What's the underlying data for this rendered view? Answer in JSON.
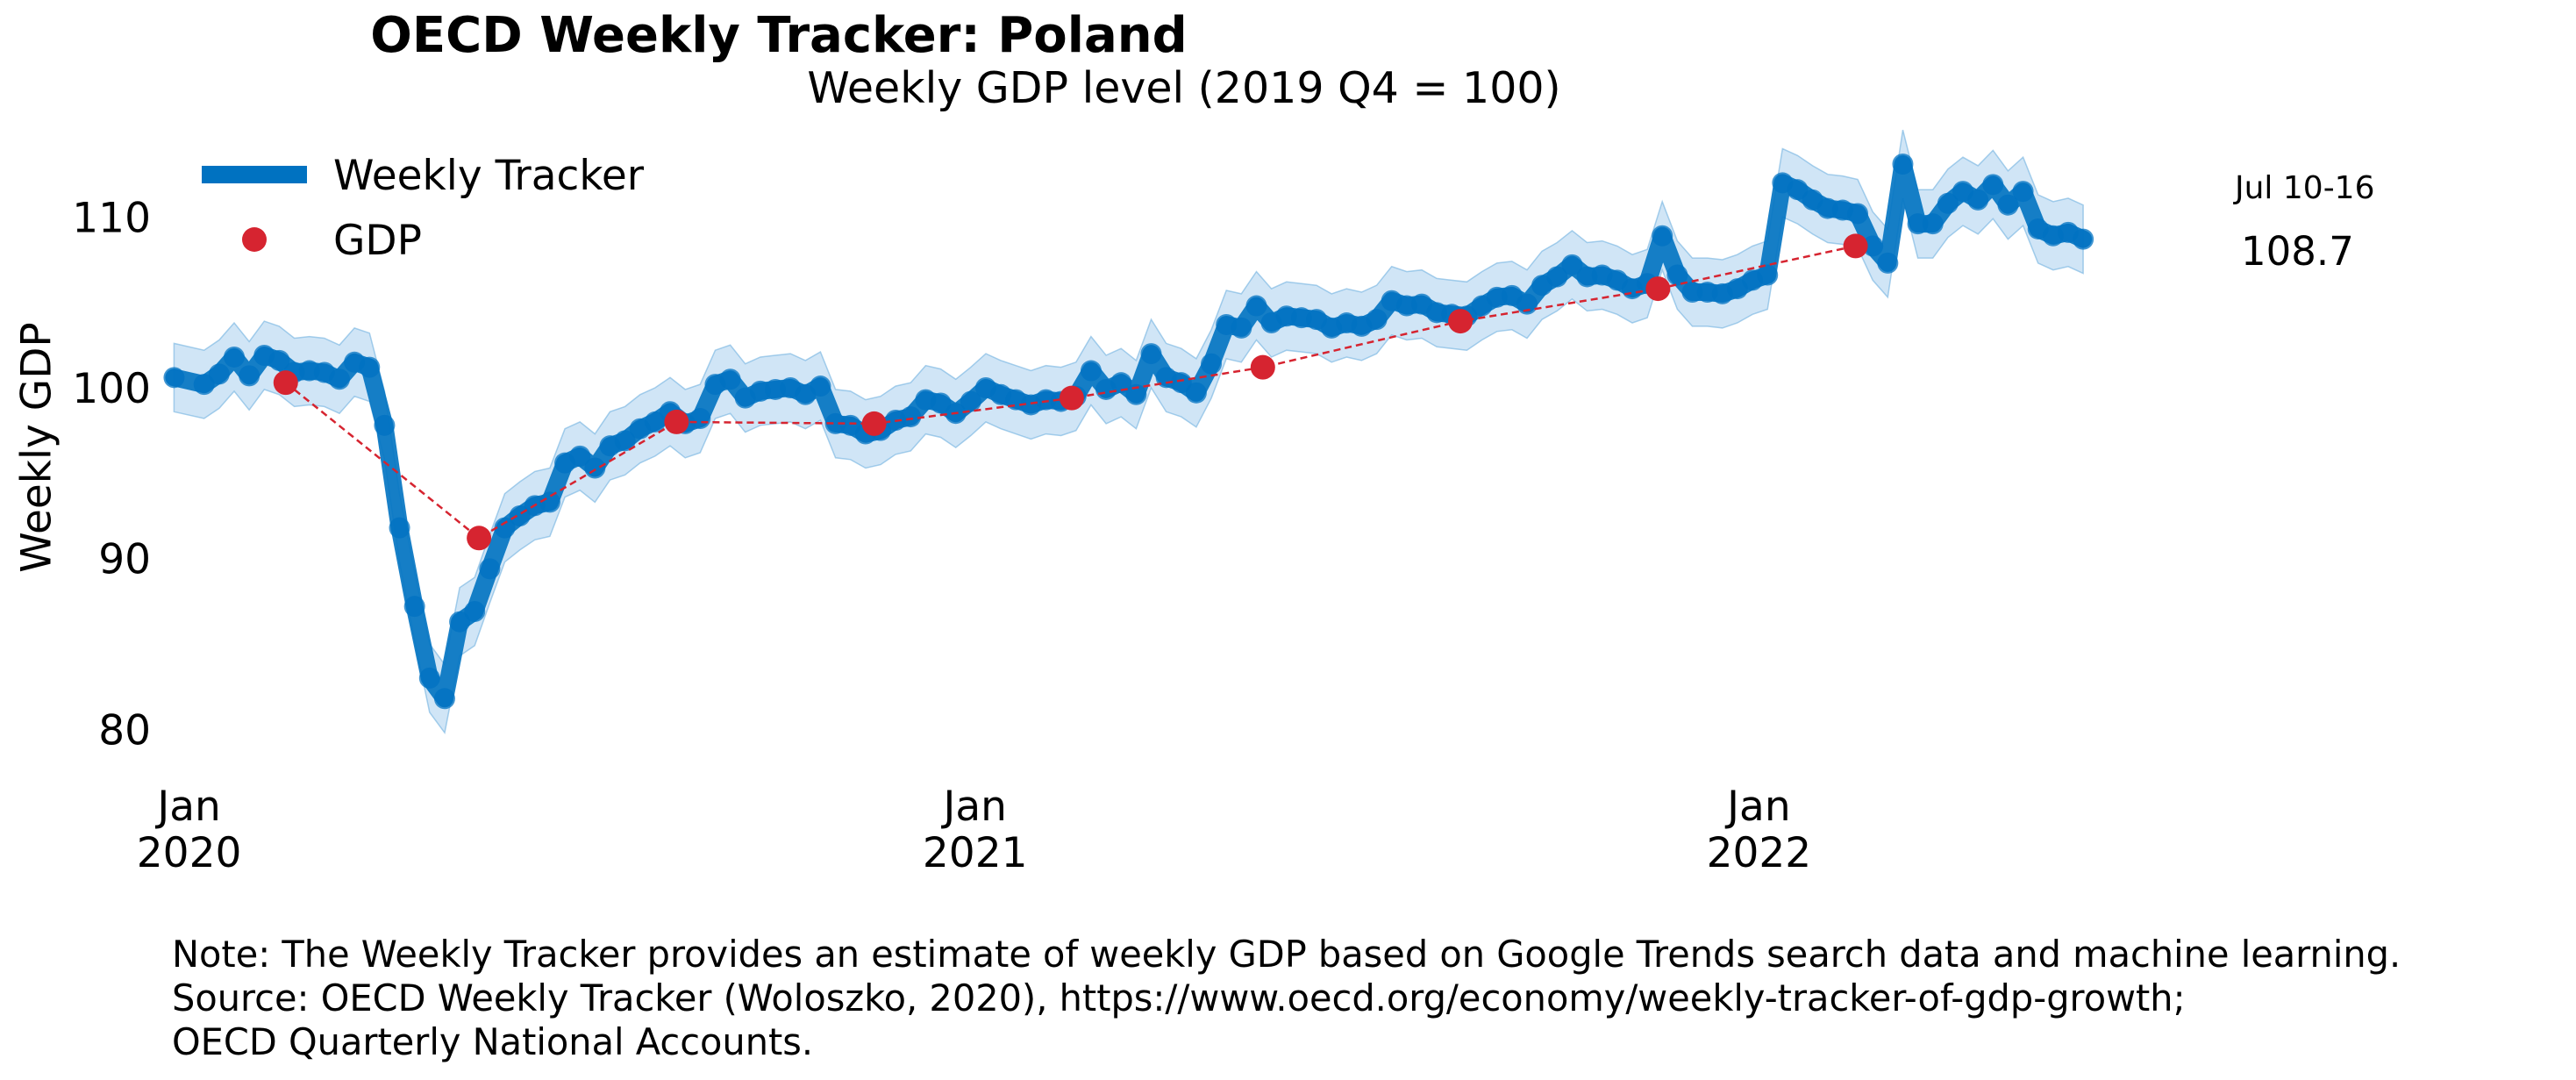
{
  "title": "OECD Weekly Tracker: Poland",
  "subtitle": "Weekly GDP level (2019 Q4 = 100)",
  "notes": [
    "Note: The Weekly Tracker provides an estimate of weekly GDP based on Google Trends search data and machine learning.",
    "Source: OECD Weekly Tracker (Woloszko, 2020), https://www.oecd.org/economy/weekly-tracker-of-gdp-growth;",
    "OECD Quarterly National Accounts."
  ],
  "colors": {
    "tracker": "#0072c1",
    "band": "#a9cfee",
    "gdp": "#d62430",
    "gdp_line": "#d62430"
  },
  "chart_data": {
    "type": "line",
    "ylabel": "Weekly GDP",
    "y_ticks": [
      80,
      90,
      100,
      110
    ],
    "ylim": [
      77.5,
      115
    ],
    "x_ticks": [
      {
        "date": "2020-01-01",
        "month": "Jan",
        "year": "2020"
      },
      {
        "date": "2021-01-01",
        "month": "Jan",
        "year": "2021"
      },
      {
        "date": "2022-01-01",
        "month": "Jan",
        "year": "2022"
      }
    ],
    "xlim": [
      "2019-12-24",
      "2022-07-22"
    ],
    "legend_position": "top-left",
    "end_annotation": {
      "period": "Jul 10-16",
      "value": "108.7"
    },
    "series": [
      {
        "name": "Weekly Tracker",
        "kind": "line-with-band",
        "band_width": 2.0,
        "points": [
          [
            "2019-12-25",
            100.6
          ],
          [
            "2020-01-08",
            100.2
          ],
          [
            "2020-01-15",
            100.8
          ],
          [
            "2020-01-22",
            101.8
          ],
          [
            "2020-01-29",
            100.7
          ],
          [
            "2020-02-05",
            101.9
          ],
          [
            "2020-02-12",
            101.6
          ],
          [
            "2020-02-19",
            100.9
          ],
          [
            "2020-02-26",
            101.0
          ],
          [
            "2020-03-04",
            100.9
          ],
          [
            "2020-03-11",
            100.5
          ],
          [
            "2020-03-18",
            101.5
          ],
          [
            "2020-03-25",
            101.2
          ],
          [
            "2020-04-01",
            97.8
          ],
          [
            "2020-04-08",
            91.8
          ],
          [
            "2020-04-15",
            87.2
          ],
          [
            "2020-04-22",
            83.0
          ],
          [
            "2020-04-29",
            81.8
          ],
          [
            "2020-05-06",
            86.3
          ],
          [
            "2020-05-13",
            86.9
          ],
          [
            "2020-05-20",
            89.4
          ],
          [
            "2020-05-27",
            91.8
          ],
          [
            "2020-06-03",
            92.5
          ],
          [
            "2020-06-10",
            93.1
          ],
          [
            "2020-06-17",
            93.3
          ],
          [
            "2020-06-24",
            95.6
          ],
          [
            "2020-07-01",
            96.0
          ],
          [
            "2020-07-08",
            95.3
          ],
          [
            "2020-07-15",
            96.6
          ],
          [
            "2020-07-22",
            96.9
          ],
          [
            "2020-07-29",
            97.6
          ],
          [
            "2020-08-05",
            98.0
          ],
          [
            "2020-08-12",
            98.6
          ],
          [
            "2020-08-19",
            97.9
          ],
          [
            "2020-08-26",
            98.2
          ],
          [
            "2020-09-02",
            100.2
          ],
          [
            "2020-09-09",
            100.5
          ],
          [
            "2020-09-16",
            99.4
          ],
          [
            "2020-09-23",
            99.8
          ],
          [
            "2020-09-30",
            99.9
          ],
          [
            "2020-10-07",
            100.0
          ],
          [
            "2020-10-14",
            99.6
          ],
          [
            "2020-10-21",
            100.1
          ],
          [
            "2020-10-28",
            97.9
          ],
          [
            "2020-11-04",
            97.8
          ],
          [
            "2020-11-11",
            97.3
          ],
          [
            "2020-11-18",
            97.5
          ],
          [
            "2020-11-25",
            98.1
          ],
          [
            "2020-12-02",
            98.3
          ],
          [
            "2020-12-09",
            99.3
          ],
          [
            "2020-12-16",
            99.1
          ],
          [
            "2020-12-23",
            98.5
          ],
          [
            "2020-12-30",
            99.2
          ],
          [
            "2021-01-06",
            100.0
          ],
          [
            "2021-01-13",
            99.6
          ],
          [
            "2021-01-20",
            99.3
          ],
          [
            "2021-01-27",
            99.0
          ],
          [
            "2021-02-03",
            99.3
          ],
          [
            "2021-02-10",
            99.2
          ],
          [
            "2021-02-17",
            99.5
          ],
          [
            "2021-02-24",
            101.0
          ],
          [
            "2021-03-03",
            99.9
          ],
          [
            "2021-03-10",
            100.3
          ],
          [
            "2021-03-17",
            99.6
          ],
          [
            "2021-03-24",
            102.0
          ],
          [
            "2021-03-31",
            100.6
          ],
          [
            "2021-04-07",
            100.3
          ],
          [
            "2021-04-14",
            99.7
          ],
          [
            "2021-04-21",
            101.4
          ],
          [
            "2021-04-28",
            103.7
          ],
          [
            "2021-05-05",
            103.5
          ],
          [
            "2021-05-12",
            104.8
          ],
          [
            "2021-05-19",
            103.8
          ],
          [
            "2021-05-26",
            104.2
          ],
          [
            "2021-06-02",
            104.1
          ],
          [
            "2021-06-09",
            104.0
          ],
          [
            "2021-06-16",
            103.5
          ],
          [
            "2021-06-23",
            103.8
          ],
          [
            "2021-06-30",
            103.6
          ],
          [
            "2021-07-07",
            104.0
          ],
          [
            "2021-07-14",
            105.1
          ],
          [
            "2021-07-21",
            104.8
          ],
          [
            "2021-07-28",
            104.9
          ],
          [
            "2021-08-04",
            104.4
          ],
          [
            "2021-08-11",
            104.3
          ],
          [
            "2021-08-18",
            104.2
          ],
          [
            "2021-08-25",
            104.8
          ],
          [
            "2021-09-01",
            105.3
          ],
          [
            "2021-09-08",
            105.4
          ],
          [
            "2021-09-15",
            104.9
          ],
          [
            "2021-09-22",
            106.0
          ],
          [
            "2021-09-29",
            106.5
          ],
          [
            "2021-10-06",
            107.2
          ],
          [
            "2021-10-13",
            106.5
          ],
          [
            "2021-10-20",
            106.6
          ],
          [
            "2021-10-27",
            106.3
          ],
          [
            "2021-11-03",
            105.8
          ],
          [
            "2021-11-10",
            106.1
          ],
          [
            "2021-11-17",
            108.9
          ],
          [
            "2021-11-24",
            106.6
          ],
          [
            "2021-12-01",
            105.6
          ],
          [
            "2021-12-08",
            105.6
          ],
          [
            "2021-12-15",
            105.5
          ],
          [
            "2021-12-22",
            105.8
          ],
          [
            "2021-12-29",
            106.3
          ],
          [
            "2022-01-05",
            106.6
          ],
          [
            "2022-01-12",
            112.0
          ],
          [
            "2022-01-19",
            111.6
          ],
          [
            "2022-01-26",
            111.0
          ],
          [
            "2022-02-02",
            110.5
          ],
          [
            "2022-02-09",
            110.4
          ],
          [
            "2022-02-16",
            110.2
          ],
          [
            "2022-02-23",
            108.3
          ],
          [
            "2022-03-02",
            107.3
          ],
          [
            "2022-03-09",
            113.1
          ],
          [
            "2022-03-16",
            109.6
          ],
          [
            "2022-03-23",
            109.6
          ],
          [
            "2022-03-30",
            110.8
          ],
          [
            "2022-04-06",
            111.5
          ],
          [
            "2022-04-13",
            111.0
          ],
          [
            "2022-04-20",
            111.9
          ],
          [
            "2022-04-27",
            110.7
          ],
          [
            "2022-05-04",
            111.5
          ],
          [
            "2022-05-11",
            109.3
          ],
          [
            "2022-05-18",
            108.9
          ],
          [
            "2022-05-25",
            109.1
          ],
          [
            "2022-06-01",
            108.7
          ]
        ]
      },
      {
        "name": "GDP",
        "kind": "scatter-with-dashed-line",
        "points": [
          [
            "2020-02-15",
            100.3
          ],
          [
            "2020-05-15",
            91.2
          ],
          [
            "2020-08-15",
            98.0
          ],
          [
            "2020-11-15",
            97.9
          ],
          [
            "2021-02-15",
            99.4
          ],
          [
            "2021-05-15",
            101.2
          ],
          [
            "2021-08-15",
            103.9
          ],
          [
            "2021-11-15",
            105.8
          ],
          [
            "2022-02-15",
            108.3
          ]
        ]
      }
    ]
  }
}
